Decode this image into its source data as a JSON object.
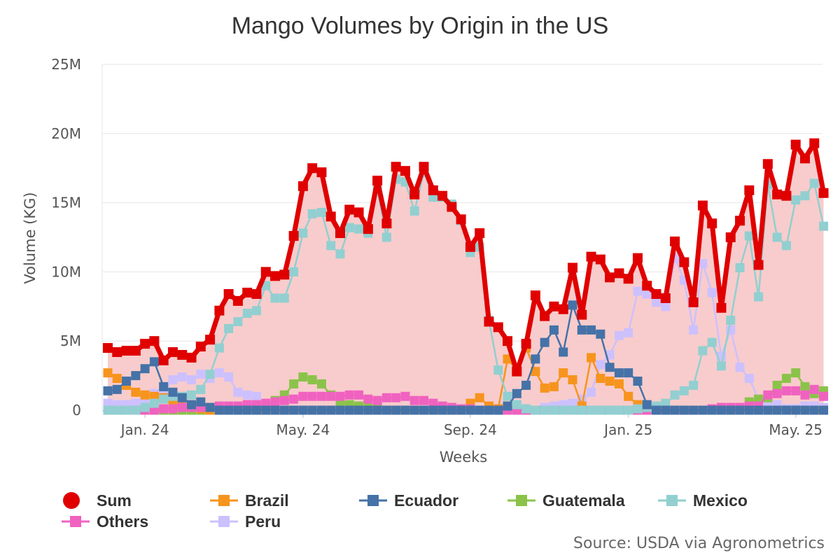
{
  "chart_data": {
    "type": "line",
    "title": "Mango Volumes by Origin in the US",
    "xlabel": "Weeks",
    "ylabel": "Volume (KG)",
    "ylim": [
      0,
      25000000
    ],
    "y_ticks": [
      0,
      5000000,
      10000000,
      15000000,
      20000000,
      25000000
    ],
    "y_tick_labels": [
      "0",
      "5M",
      "10M",
      "15M",
      "20M",
      "25M"
    ],
    "x_tick_labels": [
      "Jan. 24",
      "May. 24",
      "Sep. 24",
      "Jan. 25",
      "May. 25"
    ],
    "x_tick_weeks": [
      4,
      21,
      39,
      56,
      74
    ],
    "grid": true,
    "legend_position": "bottom",
    "series": [
      {
        "name": "Sum",
        "color": "#e00000",
        "symbol": "circle",
        "values": [
          4.5,
          4.2,
          4.3,
          4.3,
          4.8,
          5,
          3.6,
          4.2,
          4,
          3.8,
          4.6,
          5.1,
          7.2,
          8.4,
          7.9,
          8.5,
          8.4,
          10,
          9.7,
          9.8,
          12.6,
          16.2,
          17.5,
          17.2,
          14,
          12.8,
          14.5,
          14.3,
          13.1,
          16.6,
          13.5,
          17.6,
          17.3,
          15.6,
          17.6,
          15.9,
          15.5,
          14.7,
          13.8,
          11.8,
          12.8,
          6.4,
          6,
          5,
          2.8,
          4.8,
          8.3,
          6.8,
          7.5,
          7.3,
          10.3,
          6.9,
          11.1,
          10.9,
          9.6,
          9.9,
          9.5,
          11,
          9,
          8.4,
          8.1,
          12.2,
          10.7,
          7.8,
          14.8,
          13.5,
          7.4,
          12.5,
          13.7,
          15.9,
          10.5,
          17.8,
          15.6,
          15.5,
          19.2,
          18.2,
          19.3,
          15.7
        ]
      },
      {
        "name": "Brazil",
        "color": "#f7941d",
        "symbol": "square",
        "values": [
          2.7,
          2.3,
          1.8,
          1.3,
          1.1,
          1,
          0.9,
          0.5,
          0.3,
          0.2,
          0.1,
          0,
          0,
          0,
          0,
          0,
          0,
          0,
          0,
          0,
          0,
          0,
          0,
          0,
          0,
          0,
          0,
          0,
          0,
          0,
          0,
          0,
          0,
          0,
          0,
          0,
          0,
          0,
          0,
          0.5,
          0.9,
          0.3,
          0.1,
          3.7,
          2.9,
          4.5,
          2.8,
          1.6,
          1.7,
          2.7,
          2.2,
          0.3,
          3.8,
          2.3,
          2.1,
          1.9,
          1,
          0.4,
          0.2,
          0.1,
          0,
          0,
          0,
          0,
          0,
          0,
          0,
          0,
          0,
          0,
          0,
          0,
          0,
          0,
          0,
          0,
          0,
          0
        ]
      },
      {
        "name": "Ecuador",
        "color": "#4572a7",
        "symbol": "square",
        "values": [
          1.4,
          1.5,
          2.1,
          2.5,
          3,
          3.5,
          1.7,
          1.3,
          0.9,
          0.4,
          0.6,
          0.2,
          0,
          0,
          0,
          0,
          0,
          0,
          0,
          0,
          0,
          0,
          0,
          0,
          0,
          0,
          0,
          0,
          0,
          0,
          0,
          0,
          0,
          0,
          0,
          0,
          0,
          0,
          0,
          0,
          0,
          0,
          0,
          0.3,
          1.2,
          1.8,
          3.7,
          4.9,
          5.8,
          4.2,
          7.6,
          5.8,
          5.8,
          5.5,
          3.1,
          2.7,
          2.7,
          2.1,
          0.4,
          0,
          0,
          0,
          0,
          0,
          0,
          0,
          0,
          0,
          0,
          0,
          0,
          0,
          0,
          0,
          0,
          0,
          0,
          0
        ]
      },
      {
        "name": "Guatemala",
        "color": "#8bc34a",
        "symbol": "square",
        "values": [
          0,
          0,
          0,
          0,
          0,
          0,
          0,
          0,
          0,
          0,
          0,
          0,
          0,
          0,
          0,
          0,
          0,
          0.3,
          0.7,
          1.1,
          1.9,
          2.4,
          2.2,
          1.9,
          1.1,
          0.6,
          0.4,
          0.3,
          0.2,
          0.1,
          0,
          0,
          0,
          0,
          0,
          0,
          0,
          0,
          0,
          0,
          0,
          0,
          0,
          0,
          0,
          0,
          0,
          0,
          0,
          0,
          0,
          0,
          0,
          0,
          0,
          0,
          0,
          0,
          0,
          0,
          0,
          0,
          0,
          0,
          0,
          0,
          0,
          0,
          0,
          0.6,
          0.8,
          0.9,
          1.8,
          2.3,
          2.7,
          1.7,
          1.2,
          1.4
        ]
      },
      {
        "name": "Mexico",
        "color": "#92cfd1",
        "symbol": "square",
        "values": [
          0,
          0,
          0,
          0,
          0.2,
          0.5,
          0.8,
          1,
          1,
          1.1,
          1.5,
          2.6,
          4.5,
          5.9,
          6.4,
          7,
          7.2,
          9,
          8.1,
          8.1,
          10,
          12.8,
          14.2,
          14.3,
          11.9,
          11.3,
          13.2,
          13.1,
          12.8,
          15.9,
          12.5,
          16.7,
          16.5,
          14.4,
          17.2,
          15.4,
          15.4,
          14.9,
          13.7,
          11.4,
          11.8,
          6.5,
          2.9,
          1,
          0.4,
          0.1,
          0,
          0,
          0,
          0,
          0,
          0,
          0,
          0,
          0,
          0,
          0,
          0.1,
          0.2,
          0.3,
          0.5,
          1.1,
          1.4,
          1.8,
          4.3,
          4.9,
          3.2,
          6.5,
          10.3,
          12.6,
          8.2,
          16.3,
          12.5,
          11.9,
          15.2,
          15.5,
          16.4,
          13.3
        ]
      },
      {
        "name": "Others",
        "color": "#f062c0",
        "symbol": "square",
        "values": [
          0,
          0,
          0,
          0,
          0,
          0,
          0.1,
          0.1,
          0.2,
          0.2,
          0.2,
          0.2,
          0.3,
          0.3,
          0.3,
          0.4,
          0.4,
          0.5,
          0.6,
          0.7,
          0.8,
          1,
          1,
          1,
          1,
          1,
          1.1,
          1.1,
          0.8,
          0.7,
          0.9,
          0.9,
          1,
          0.7,
          0.7,
          0.5,
          0.3,
          0.2,
          0.1,
          0.1,
          0,
          0,
          0,
          0,
          0,
          0,
          0,
          0,
          0,
          0,
          0,
          0,
          0,
          0,
          0,
          0,
          0,
          0,
          0,
          0,
          0,
          0,
          0,
          0,
          0,
          0.1,
          0.2,
          0.2,
          0.2,
          0.3,
          0.3,
          1.1,
          1.2,
          1.4,
          1.4,
          1.1,
          1.5,
          1
        ]
      },
      {
        "name": "Peru",
        "color": "#cdc0ff",
        "symbol": "square",
        "values": [
          0.5,
          0.4,
          0.4,
          0.5,
          0.8,
          1.2,
          1.3,
          2.2,
          2.4,
          2.2,
          2.6,
          2.3,
          2.7,
          2.4,
          1.3,
          1.1,
          1,
          0.4,
          0.3,
          0,
          0,
          0,
          0,
          0,
          0,
          0,
          0,
          0,
          0,
          0,
          0,
          0,
          0,
          0,
          0,
          0,
          0,
          0,
          0,
          0,
          0,
          0,
          0,
          0,
          0,
          0,
          0,
          0.2,
          0.3,
          0.4,
          0.5,
          0.8,
          1.3,
          3.3,
          4,
          5.4,
          5.6,
          8.6,
          8.4,
          7.8,
          7.5,
          11,
          9.4,
          5.8,
          10.6,
          8.5,
          3.9,
          5.8,
          3.1,
          2.3,
          0.8,
          0.5,
          0.4,
          0.1,
          0.1,
          0.3,
          0.3,
          0.2
        ]
      }
    ]
  },
  "credits": "Source: USDA via Agronometrics"
}
